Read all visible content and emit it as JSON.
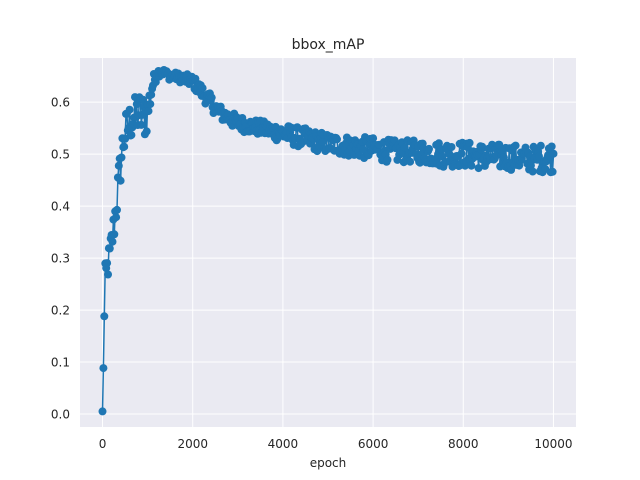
{
  "chart_data": {
    "type": "line",
    "title": "bbox_mAP",
    "xlabel": "epoch",
    "ylabel": "",
    "xlim": [
      -500,
      10500
    ],
    "ylim": [
      -0.025,
      0.685
    ],
    "x_ticks": [
      0,
      2000,
      4000,
      6000,
      8000,
      10000
    ],
    "x_tick_labels": [
      "0",
      "2000",
      "4000",
      "6000",
      "8000",
      "10000"
    ],
    "y_ticks": [
      0.0,
      0.1,
      0.2,
      0.3,
      0.4,
      0.5,
      0.6
    ],
    "y_tick_labels": [
      "0.0",
      "0.1",
      "0.2",
      "0.3",
      "0.4",
      "0.5",
      "0.6"
    ],
    "grid": true,
    "legend": "none",
    "marker": "circle",
    "background_color": "#eaeaf2",
    "series_color": "#1f77b4",
    "series": [
      {
        "x": [
          0,
          10,
          20,
          30,
          40,
          50,
          60,
          80,
          100,
          150,
          200,
          250,
          300,
          350,
          400,
          450,
          500,
          600,
          700,
          800,
          900,
          1000,
          1100,
          1200,
          1300,
          1400,
          1500,
          1600,
          1800,
          2000,
          2200,
          2400,
          2600,
          2800,
          3000,
          3500,
          4000,
          4500,
          5000,
          5500,
          6000,
          6500,
          7000,
          7500,
          8000,
          8500,
          9000,
          9500,
          10000
        ],
        "y": [
          0.005,
          0.06,
          0.1,
          0.14,
          0.18,
          0.22,
          0.26,
          0.27,
          0.28,
          0.3,
          0.33,
          0.36,
          0.4,
          0.44,
          0.48,
          0.52,
          0.54,
          0.56,
          0.57,
          0.58,
          0.57,
          0.58,
          0.63,
          0.655,
          0.66,
          0.655,
          0.65,
          0.65,
          0.645,
          0.64,
          0.62,
          0.6,
          0.58,
          0.57,
          0.56,
          0.55,
          0.54,
          0.53,
          0.52,
          0.515,
          0.51,
          0.505,
          0.505,
          0.5,
          0.5,
          0.495,
          0.495,
          0.49,
          0.495
        ],
        "spread": [
          0,
          0.02,
          0.03,
          0.03,
          0.03,
          0.03,
          0.03,
          0.03,
          0.03,
          0.03,
          0.03,
          0.035,
          0.04,
          0.04,
          0.04,
          0.04,
          0.04,
          0.04,
          0.04,
          0.04,
          0.05,
          0.04,
          0.02,
          0.01,
          0.008,
          0.008,
          0.008,
          0.008,
          0.01,
          0.012,
          0.015,
          0.015,
          0.015,
          0.015,
          0.015,
          0.015,
          0.018,
          0.02,
          0.02,
          0.02,
          0.022,
          0.022,
          0.022,
          0.025,
          0.025,
          0.025,
          0.025,
          0.025,
          0.03
        ]
      }
    ]
  }
}
